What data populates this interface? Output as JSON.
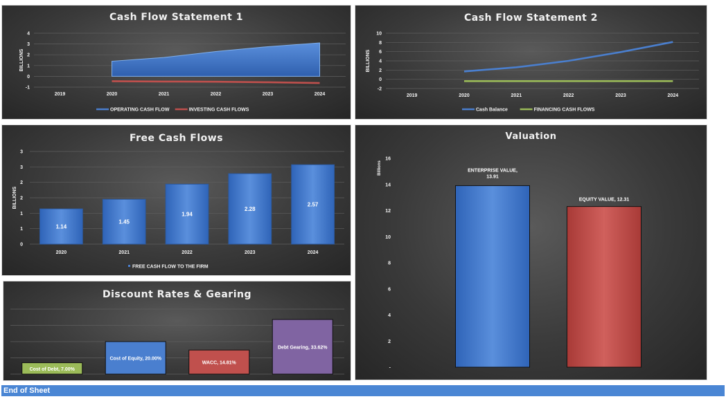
{
  "footer": {
    "text": "End of Sheet"
  },
  "colors": {
    "blue": "#4a7fcf",
    "red": "#c0504d",
    "green": "#9bbb59",
    "purple": "#8064a2"
  },
  "chart_data": [
    {
      "id": "cfs1",
      "type": "area",
      "title": "Cash Flow Statement 1",
      "ylabel": "BILLIONS",
      "categories": [
        "2019",
        "2020",
        "2021",
        "2022",
        "2023",
        "2024"
      ],
      "ylim": [
        -1,
        4
      ],
      "yticks": [
        "4",
        "3",
        "2",
        "1",
        "0",
        "-1"
      ],
      "series": [
        {
          "name": "OPERATING CASH FLOW",
          "kind": "area",
          "color": "#4a7fcf",
          "values": [
            null,
            1.4,
            1.75,
            2.3,
            2.75,
            3.1
          ]
        },
        {
          "name": "INVESTING CASH FLOWS",
          "kind": "line",
          "color": "#c0504d",
          "values": [
            null,
            -0.45,
            -0.48,
            -0.5,
            -0.55,
            -0.62
          ]
        }
      ],
      "legend": "bottom"
    },
    {
      "id": "cfs2",
      "type": "line",
      "title": "Cash Flow Statement 2",
      "ylabel": "BILLIONS",
      "categories": [
        "2019",
        "2020",
        "2021",
        "2022",
        "2023",
        "2024"
      ],
      "ylim": [
        -2,
        10
      ],
      "yticks": [
        "10",
        "8",
        "6",
        "4",
        "2",
        "0",
        "-2"
      ],
      "series": [
        {
          "name": "Cash Balance",
          "color": "#4a7fcf",
          "values": [
            null,
            1.7,
            2.6,
            4.0,
            5.9,
            8.1
          ]
        },
        {
          "name": "FINANCING CASH FLOWS",
          "color": "#9bbb59",
          "values": [
            null,
            -0.4,
            -0.4,
            -0.4,
            -0.4,
            -0.4
          ]
        }
      ],
      "legend": "bottom"
    },
    {
      "id": "fcf",
      "type": "bar",
      "title": "Free Cash Flows",
      "ylabel": "BILLIONS",
      "categories": [
        "2020",
        "2021",
        "2022",
        "2023",
        "2024"
      ],
      "values": [
        1.14,
        1.45,
        1.94,
        2.28,
        2.57
      ],
      "labels": [
        "1.14",
        "1.45",
        "1.94",
        "2.28",
        "2.57"
      ],
      "ylim": [
        0,
        3
      ],
      "yticks": [
        "3",
        "3",
        "2",
        "2",
        "1",
        "1",
        "0"
      ],
      "series_name": "FREE CASH FLOW TO THE FIRM",
      "color": "#4a7fcf",
      "legend": "bottom"
    },
    {
      "id": "val",
      "type": "bar",
      "title": "Valuation",
      "ylabel": "Billions",
      "categories": [
        "ENTERPRISE VALUE",
        "EQUITY VALUE"
      ],
      "values": [
        13.91,
        12.31
      ],
      "labels": [
        "ENTERPRISE VALUE,",
        "EQUITY VALUE, 12.31"
      ],
      "label2": [
        "13.91",
        ""
      ],
      "colors": [
        "#4a7fcf",
        "#c0504d"
      ],
      "ylim": [
        0,
        16
      ],
      "yticks": [
        "16",
        "14",
        "12",
        "10",
        "8",
        "6",
        "4",
        "2",
        "-"
      ]
    },
    {
      "id": "drg",
      "type": "bar",
      "title": "Discount Rates & Gearing",
      "categories": [
        "Cost of Debt",
        "Cost of Equity",
        "WACC",
        "Debt Gearing"
      ],
      "values": [
        7.0,
        20.0,
        14.81,
        33.62
      ],
      "labels": [
        "Cost of Debt, 7.00%",
        "Cost of Equity, 20.00%",
        "WACC, 14.81%",
        "Debt Gearing, 33.62%"
      ],
      "colors": [
        "#9bbb59",
        "#4a7fcf",
        "#c0504d",
        "#8064a2"
      ],
      "ylim": [
        0,
        40
      ]
    }
  ]
}
